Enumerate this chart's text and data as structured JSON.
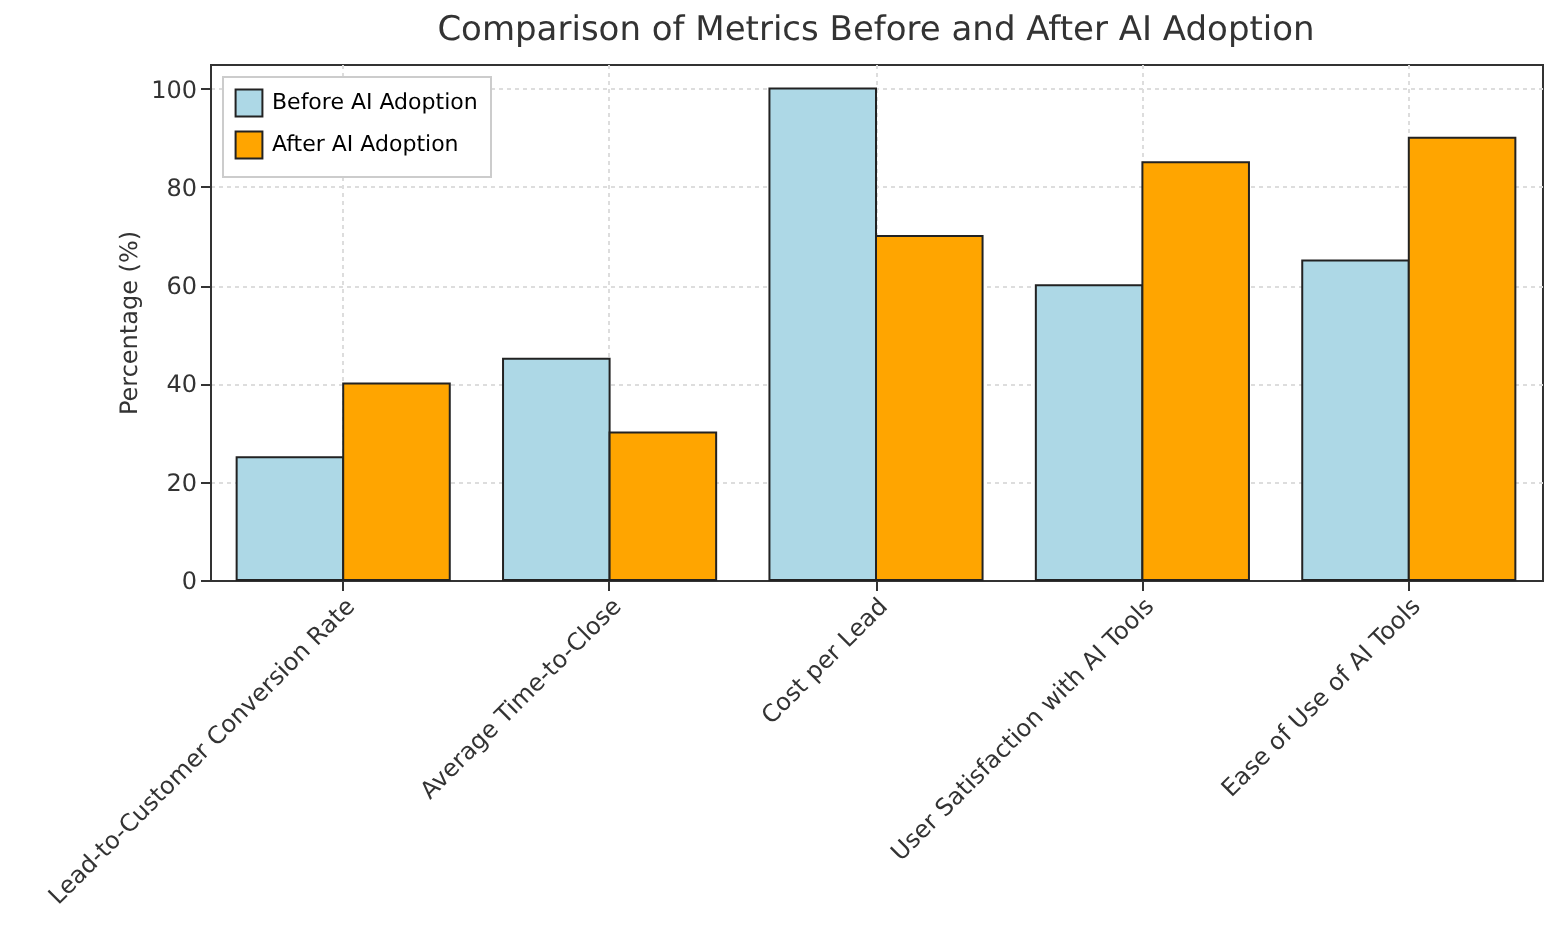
{
  "chart_data": {
    "type": "bar",
    "title": "Comparison of Metrics Before and After AI Adoption",
    "ylabel": "Percentage (%)",
    "categories": [
      "Lead-to-Customer Conversion Rate",
      "Average Time-to-Close",
      "Cost per Lead",
      "User Satisfaction with AI Tools",
      "Ease of Use of AI Tools"
    ],
    "series": [
      {
        "name": "Before AI Adoption",
        "color": "#add8e6",
        "values": [
          25,
          45,
          100,
          60,
          65
        ]
      },
      {
        "name": "After AI Adoption",
        "color": "#ffa500",
        "values": [
          40,
          30,
          70,
          85,
          90
        ]
      }
    ],
    "ylim": [
      0,
      105
    ],
    "yticks": [
      0,
      20,
      40,
      60,
      80,
      100
    ],
    "grid": true,
    "legend": "top left"
  }
}
